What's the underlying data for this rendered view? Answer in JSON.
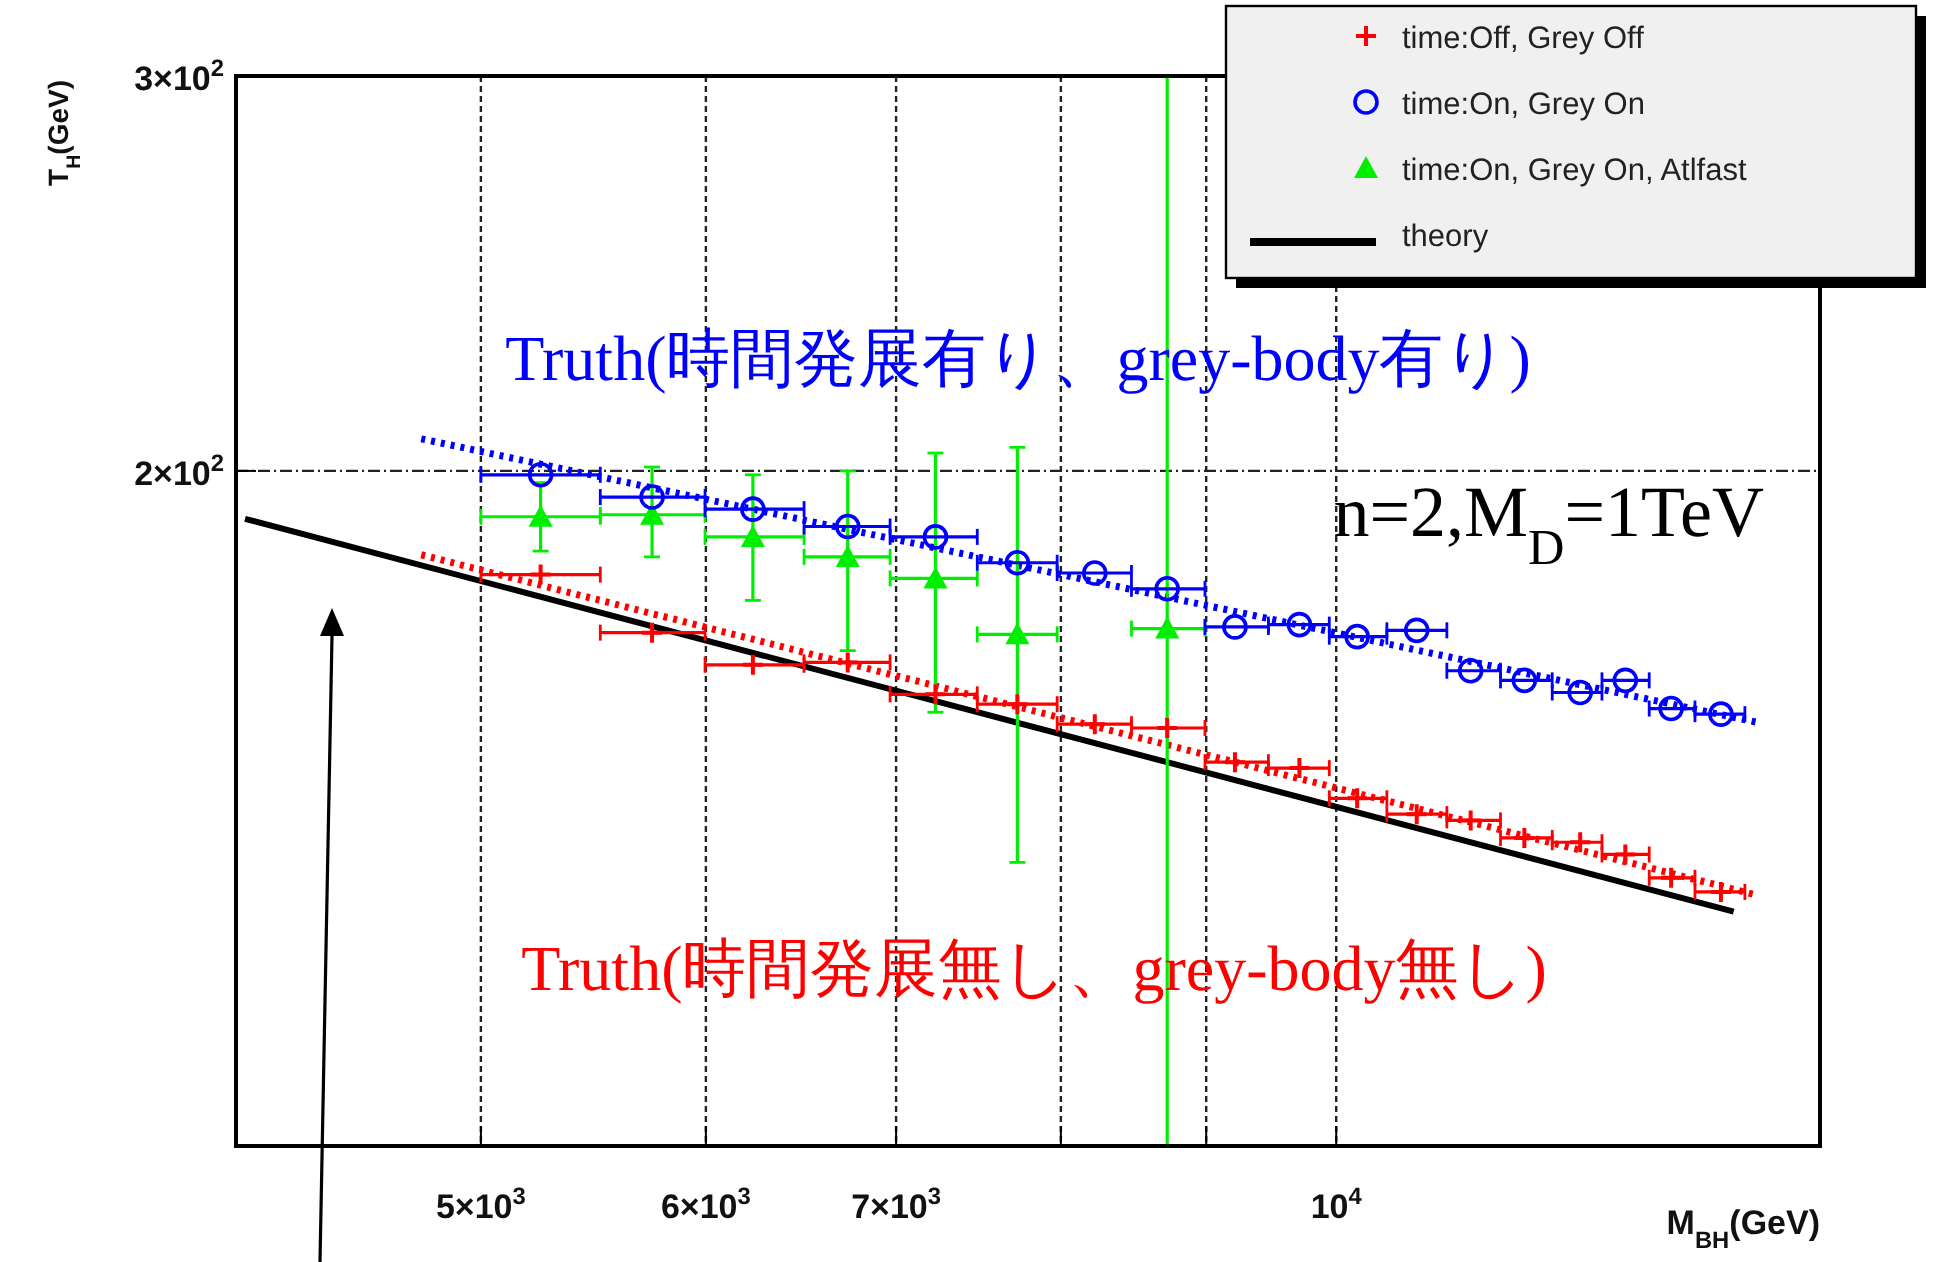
{
  "chart_data": {
    "type": "scatter",
    "xlabel": "M$_{BH}$(GeV)",
    "ylabel": "T$_{H}$(GeV)",
    "log": "xy",
    "xlim": [
      4100,
      14800
    ],
    "ylim": [
      100,
      300
    ],
    "xticks": [
      {
        "value": 5000,
        "label": "5×10$^{3}$"
      },
      {
        "value": 6000,
        "label": "6×10$^{3}$"
      },
      {
        "value": 7000,
        "label": "7×10$^{3}$"
      },
      {
        "value": 8000,
        "label": null
      },
      {
        "value": 9000,
        "label": null
      },
      {
        "value": 10000,
        "label": "10$^{4}$"
      }
    ],
    "yticks": [
      {
        "value": 200,
        "label": "2×10$^{2}$"
      },
      {
        "value": 300,
        "label": "3×10$^{2}$"
      }
    ],
    "grid": true,
    "legend": "top right",
    "annotations": [
      "Truth(時間発展有り、grey-body有り)",
      "Truth(時間発展無し、grey-body無し)",
      "n=2,M$_{D}$=1TeV"
    ],
    "series": [
      {
        "name": "time:Off, Grey Off",
        "marker": "cross",
        "color": "#ff0000",
        "x": [
          5248,
          5744,
          6233,
          6731,
          7227,
          7723,
          8223,
          8720,
          9212,
          9706,
          10171,
          10674,
          11151,
          11647,
          12186,
          12640,
          13118,
          13658
        ],
        "values": [
          179.8,
          169.4,
          163.9,
          164.3,
          159.0,
          157.4,
          154.2,
          153.6,
          148.3,
          147.4,
          142.9,
          140.6,
          139.7,
          137.2,
          136.6,
          134.9,
          131.7,
          129.8
        ],
        "xerrors": [
          [
            5000,
            5508
          ],
          [
            5508,
            5996
          ],
          [
            5996,
            6497
          ],
          [
            6497,
            6966
          ],
          [
            6966,
            7476
          ],
          [
            7476,
            7976
          ],
          [
            7976,
            8471
          ],
          [
            8471,
            8991
          ],
          [
            8991,
            9465
          ],
          [
            9465,
            9944
          ],
          [
            9944,
            10419
          ],
          [
            10419,
            10938
          ],
          [
            10938,
            11424
          ],
          [
            11424,
            11913
          ],
          [
            11913,
            12403
          ],
          [
            12403,
            12887
          ],
          [
            12887,
            13374
          ],
          [
            13374,
            13926
          ]
        ]
      },
      {
        "name": "time:On, Grey On",
        "marker": "circle",
        "color": "#0000ff",
        "x": [
          5248,
          5744,
          6233,
          6731,
          7227,
          7723,
          8223,
          8720,
          9212,
          9706,
          10171,
          10674,
          11151,
          11647,
          12186,
          12640,
          13118,
          13658
        ],
        "values": [
          199.2,
          194.7,
          192.3,
          188.9,
          186.9,
          182.0,
          180.1,
          177.2,
          170.4,
          170.8,
          168.7,
          169.8,
          162.9,
          161.3,
          159.3,
          161.3,
          156.7,
          155.8
        ],
        "xerrors": [
          [
            5000,
            5508
          ],
          [
            5508,
            5996
          ],
          [
            5996,
            6497
          ],
          [
            6497,
            6966
          ],
          [
            6966,
            7476
          ],
          [
            7476,
            7976
          ],
          [
            7976,
            8471
          ],
          [
            8471,
            8991
          ],
          [
            8991,
            9465
          ],
          [
            9465,
            9944
          ],
          [
            9944,
            10419
          ],
          [
            10419,
            10938
          ],
          [
            10938,
            11424
          ],
          [
            11424,
            11913
          ],
          [
            11913,
            12403
          ],
          [
            12403,
            12887
          ],
          [
            12887,
            13374
          ],
          [
            13374,
            13926
          ]
        ]
      },
      {
        "name": "time:On, Grey On, Atlfast",
        "marker": "triangle",
        "color": "#00ee00",
        "x": [
          5248,
          5744,
          6233,
          6731,
          7227,
          7723,
          8720
        ],
        "values": [
          190.8,
          191.2,
          186.9,
          183.1,
          179.1,
          169.1,
          170.1
        ],
        "errors": [
          [
            184.2,
            197.6
          ],
          [
            183.1,
            200.8
          ],
          [
            175.1,
            199.2
          ],
          [
            166.3,
            200
          ],
          [
            156.1,
            203.7
          ],
          [
            133.8,
            204.9
          ],
          [
            100,
            300
          ]
        ],
        "xerrors": [
          [
            5000,
            5508
          ],
          [
            5508,
            5996
          ],
          [
            5996,
            6497
          ],
          [
            6497,
            6966
          ],
          [
            6966,
            7476
          ],
          [
            7476,
            7976
          ],
          [
            8471,
            8991
          ]
        ]
      },
      {
        "name": "theory",
        "type": "line",
        "line_style": "solid",
        "color": "#000000",
        "x": [
          4130,
          13800
        ],
        "values": [
          190.4,
          127.2
        ]
      },
      {
        "type": "line",
        "line_style": "dotted",
        "color": "#ff0000",
        "x": [
          4764,
          14020
        ],
        "values": [
          183.5,
          129.5
        ]
      },
      {
        "type": "line",
        "line_style": "dotted",
        "color": "#0000ff",
        "x": [
          4764,
          14065
        ],
        "values": [
          206.7,
          154.5
        ]
      }
    ]
  }
}
